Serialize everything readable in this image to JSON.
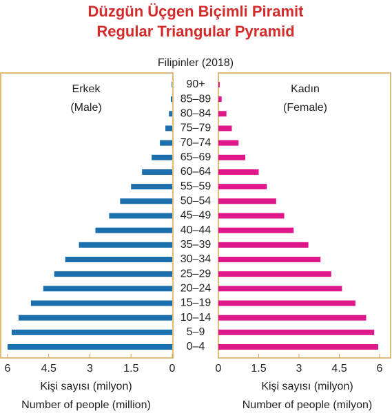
{
  "chart_data": {
    "type": "pyramid",
    "title": "Düzgün Üçgen Biçimli Piramit",
    "subtitle": "Regular Triangular Pyramid",
    "chart_label": "Filipinler (2018)",
    "categories": [
      "0–4",
      "5–9",
      "10–14",
      "15–19",
      "20–24",
      "25–29",
      "30–34",
      "35–39",
      "40–44",
      "45–49",
      "50–54",
      "55–59",
      "60–64",
      "65–69",
      "70–74",
      "75–79",
      "80–84",
      "85–89",
      "90+"
    ],
    "series": [
      {
        "name": "Erkek",
        "name_en": "(Male)",
        "color": "#1c6fad",
        "values": [
          6.0,
          5.85,
          5.6,
          5.15,
          4.7,
          4.3,
          3.9,
          3.4,
          2.8,
          2.3,
          1.9,
          1.5,
          1.1,
          0.75,
          0.45,
          0.25,
          0.12,
          0.05,
          0.02
        ],
        "xlim": [
          6,
          0
        ],
        "xticks": [
          6,
          4.5,
          3,
          1.5,
          0
        ],
        "xlabel": [
          "Kişi sayısı (milyon)",
          "Number of people (million)"
        ]
      },
      {
        "name": "Kadın",
        "name_en": "(Female)",
        "color": "#e0178a",
        "values": [
          5.95,
          5.8,
          5.5,
          5.1,
          4.6,
          4.2,
          3.8,
          3.35,
          2.8,
          2.45,
          2.15,
          1.8,
          1.5,
          1.0,
          0.75,
          0.5,
          0.3,
          0.12,
          0.05
        ],
        "xlim": [
          0,
          6
        ],
        "xticks": [
          0,
          1.5,
          3,
          4.5,
          6
        ],
        "xlabel": [
          "Kişi sayısı (milyon)",
          "Number of people (milyon)"
        ]
      }
    ]
  }
}
